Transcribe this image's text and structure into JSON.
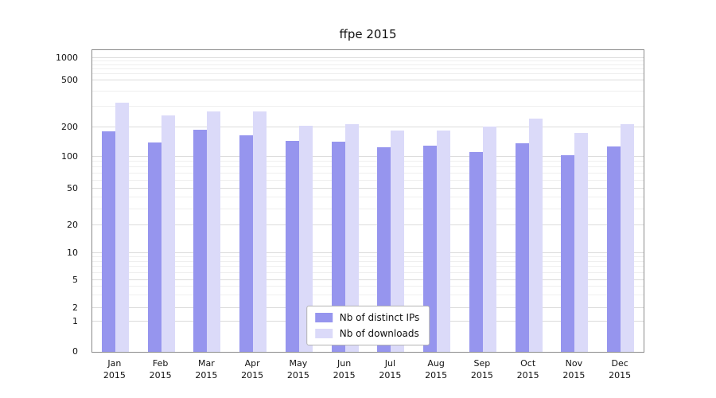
{
  "title": "ffpe 2015",
  "chart_data": {
    "type": "bar",
    "title": "ffpe 2015",
    "y_scale": "symlog",
    "grid": true,
    "legend_position": "lower center",
    "x_tick_year": "2015",
    "categories": [
      "Jan",
      "Feb",
      "Mar",
      "Apr",
      "May",
      "Jun",
      "Jul",
      "Aug",
      "Sep",
      "Oct",
      "Nov",
      "Dec"
    ],
    "y_ticks": [
      0,
      1,
      2,
      5,
      10,
      20,
      50,
      100,
      200,
      500,
      1000
    ],
    "ylim": [
      0,
      1400
    ],
    "series": [
      {
        "name": "Nb of distinct IPs",
        "color": "#9695ee",
        "values": [
          183,
          140,
          192,
          168,
          146,
          143,
          127,
          131,
          113,
          138,
          105,
          129
        ]
      },
      {
        "name": "Nb of downloads",
        "color": "#dbdaf9",
        "values": [
          325,
          253,
          272,
          274,
          207,
          213,
          186,
          186,
          205,
          240,
          176,
          214
        ]
      }
    ]
  },
  "legend": {
    "items": [
      {
        "label": "Nb of distinct IPs",
        "color": "#9695ee"
      },
      {
        "label": "Nb of downloads",
        "color": "#dbdaf9"
      }
    ]
  }
}
